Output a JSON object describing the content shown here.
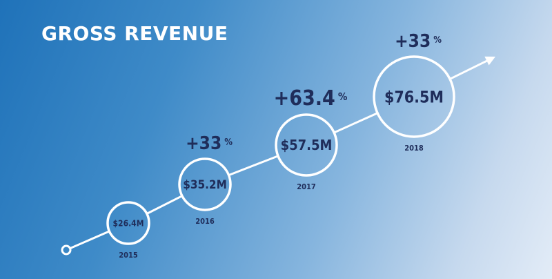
{
  "chart_data": {
    "type": "line",
    "title": "GROSS REVENUE",
    "categories": [
      "2015",
      "2016",
      "2017",
      "2018"
    ],
    "values": [
      26.4,
      35.2,
      57.5,
      76.5
    ],
    "value_labels": [
      "$26.4M",
      "$35.2M",
      "$57.5M",
      "$76.5M"
    ],
    "growth_labels": [
      "",
      "+33",
      "+63.4",
      "+33"
    ],
    "growth_unit": "%",
    "grid": false,
    "legend": "none"
  },
  "colors": {
    "line": "#ffffff",
    "text": "#1f2d5a",
    "background_start": "#1f72b9",
    "background_end": "#e3ecf7"
  }
}
